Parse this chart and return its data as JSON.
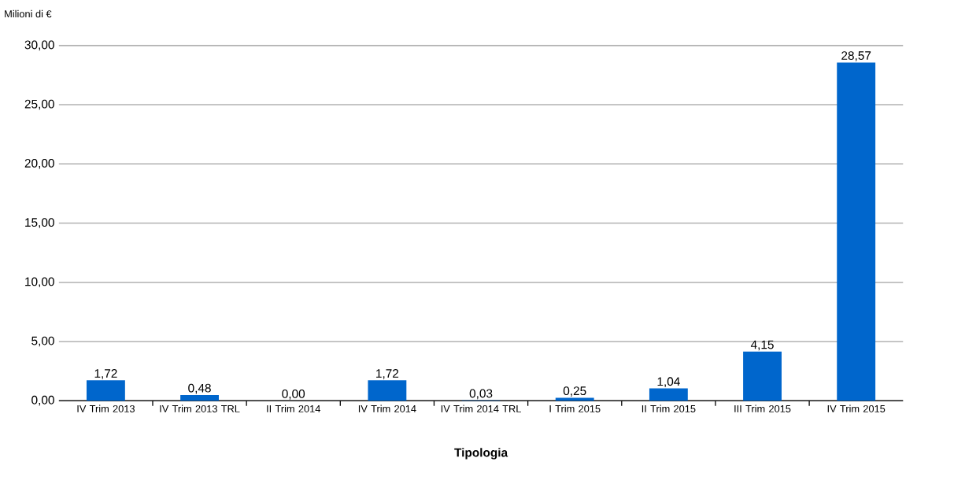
{
  "chart_data": {
    "type": "bar",
    "ylabel": "Milioni di €",
    "xlabel": "Tipologia",
    "categories": [
      "IV Trim 2013",
      "IV Trim 2013 TRL",
      "II Trim 2014",
      "IV Trim 2014",
      "IV Trim 2014 TRL",
      "I Trim 2015",
      "II Trim 2015",
      "III Trim 2015",
      "IV Trim 2015"
    ],
    "values": [
      1.72,
      0.48,
      0,
      1.72,
      0.03,
      0.25,
      1.04,
      4.15,
      28.57
    ],
    "value_labels": [
      "1,72",
      "0,48",
      "0,00",
      "1,72",
      "0,03",
      "0,25",
      "1,04",
      "4,15",
      "28,57"
    ],
    "color": "#0066cc",
    "ylim": [
      0,
      30
    ],
    "yticks": [
      {
        "value": 0,
        "label": "0,00"
      },
      {
        "value": 5,
        "label": "5,00"
      },
      {
        "value": 10,
        "label": "10,00"
      },
      {
        "value": 15,
        "label": "15,00"
      },
      {
        "value": 20,
        "label": "20,00"
      },
      {
        "value": 25,
        "label": "25,00"
      },
      {
        "value": 30,
        "label": "30,00"
      }
    ],
    "grid": "y"
  }
}
